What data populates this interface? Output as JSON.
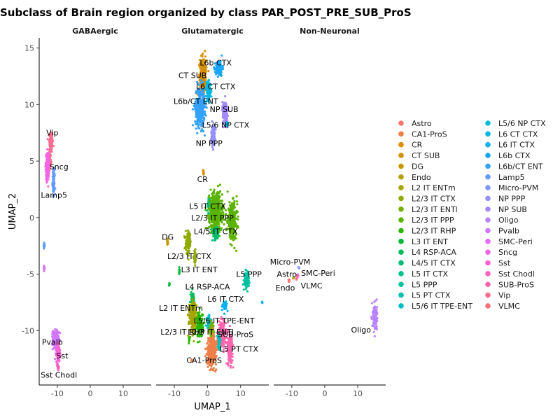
{
  "chart_data": {
    "type": "scatter",
    "title": "Subclass of Brain region organized by class PAR_POST_PRE_SUB_ProS",
    "xlabel": "UMAP_1",
    "ylabel": "UMAP_2",
    "xlim": [
      -15.5,
      18.5
    ],
    "ylim": [
      -14.8,
      15.9
    ],
    "xticks": [
      -10,
      0,
      10
    ],
    "yticks": [
      -10,
      -5,
      0,
      5,
      10,
      15
    ],
    "grid": false,
    "legend_placement": "right",
    "facets": [
      "GABAergic",
      "Glutamatergic",
      "Non-Neuronal"
    ],
    "legend": [
      {
        "name": "Astro",
        "color": "#F8766D"
      },
      {
        "name": "CA1-ProS",
        "color": "#EF7F49"
      },
      {
        "name": "CR",
        "color": "#E38900"
      },
      {
        "name": "CT SUB",
        "color": "#D69100"
      },
      {
        "name": "DG",
        "color": "#C49A00"
      },
      {
        "name": "Endo",
        "color": "#B3A000"
      },
      {
        "name": "L2 IT ENTm",
        "color": "#A3A500"
      },
      {
        "name": "L2/3 IT CTX",
        "color": "#8FAA00"
      },
      {
        "name": "L2/3 IT ENTl",
        "color": "#79AF00"
      },
      {
        "name": "L2/3 IT PPP",
        "color": "#5BB300"
      },
      {
        "name": "L2/3 IT RHP",
        "color": "#2AB700"
      },
      {
        "name": "L3 IT ENT",
        "color": "#00BA38"
      },
      {
        "name": "L4 RSP-ACA",
        "color": "#00BC59"
      },
      {
        "name": "L4/5 IT CTX",
        "color": "#00BE72"
      },
      {
        "name": "L5 IT CTX",
        "color": "#00C08B"
      },
      {
        "name": "L5 PPP",
        "color": "#00C1A1"
      },
      {
        "name": "L5 PT CTX",
        "color": "#00C0B5"
      },
      {
        "name": "L5/6 IT TPE-ENT",
        "color": "#00BFC4"
      },
      {
        "name": "L5/6 NP CTX",
        "color": "#00BDD4"
      },
      {
        "name": "L6 CT CTX",
        "color": "#00B8E4"
      },
      {
        "name": "L6 IT CTX",
        "color": "#00B0F6"
      },
      {
        "name": "L6b CTX",
        "color": "#19A6FF"
      },
      {
        "name": "L6b/CT ENT",
        "color": "#35A2FF"
      },
      {
        "name": "Lamp5",
        "color": "#619CFF"
      },
      {
        "name": "Micro-PVM",
        "color": "#7F96FF"
      },
      {
        "name": "NP PPP",
        "color": "#9590FF"
      },
      {
        "name": "NP SUB",
        "color": "#A58AFF"
      },
      {
        "name": "Oligo",
        "color": "#B983FF"
      },
      {
        "name": "Pvalb",
        "color": "#D177FF"
      },
      {
        "name": "SMC-Peri",
        "color": "#E76BF3"
      },
      {
        "name": "Sncg",
        "color": "#F365E6"
      },
      {
        "name": "Sst",
        "color": "#FC61D5"
      },
      {
        "name": "Sst Chodl",
        "color": "#FF62BC"
      },
      {
        "name": "SUB-ProS",
        "color": "#FF65AE"
      },
      {
        "name": "Vip",
        "color": "#FF6C91"
      },
      {
        "name": "VLMC",
        "color": "#FA727A"
      }
    ],
    "clusters": [
      {
        "facet": 0,
        "label": "Vip",
        "lx": -11.5,
        "ly": 7.5,
        "color": "#FF6C91",
        "blobs": [
          [
            -11.9,
            6.7,
            0.45,
            0.9,
            160
          ],
          [
            -12.6,
            5.0,
            0.6,
            0.8,
            120
          ]
        ]
      },
      {
        "facet": 0,
        "label": "Sncg",
        "lx": -9.5,
        "ly": 4.5,
        "color": "#F365E6",
        "blobs": [
          [
            -13.0,
            4.5,
            0.45,
            1.1,
            110
          ]
        ]
      },
      {
        "facet": 0,
        "label": "Lamp5",
        "lx": -11.0,
        "ly": 2.0,
        "color": "#619CFF",
        "blobs": [
          [
            -11.1,
            3.2,
            0.3,
            1.0,
            90
          ],
          [
            -14.0,
            -2.5,
            0.2,
            0.25,
            15
          ]
        ]
      },
      {
        "facet": 0,
        "label": "Pvalb",
        "lx": -11.5,
        "ly": -11.0,
        "color": "#D177FF",
        "blobs": [
          [
            -10.5,
            -10.8,
            0.8,
            0.8,
            200
          ],
          [
            -14.0,
            -4.5,
            0.2,
            0.3,
            10
          ]
        ]
      },
      {
        "facet": 0,
        "label": "Sst",
        "lx": -8.5,
        "ly": -12.2,
        "color": "#FC61D5",
        "blobs": [
          [
            -9.7,
            -12.0,
            0.5,
            0.7,
            130
          ]
        ]
      },
      {
        "facet": 0,
        "label": "Sst Chodl",
        "lx": -9.5,
        "ly": -13.9,
        "color": "#FF62BC",
        "blobs": [
          [
            -9.8,
            -13.2,
            0.3,
            0.2,
            25
          ]
        ]
      },
      {
        "facet": 1,
        "label": "L6b CTX",
        "lx": 2.5,
        "ly": 13.7,
        "color": "#19A6FF",
        "blobs": [
          [
            3.5,
            13.2,
            0.9,
            0.6,
            130
          ]
        ]
      },
      {
        "facet": 1,
        "label": "CT SUB",
        "lx": -4.5,
        "ly": 12.6,
        "color": "#D69100",
        "blobs": [
          [
            -1.3,
            12.6,
            0.9,
            1.5,
            300
          ]
        ]
      },
      {
        "facet": 1,
        "label": "L6 CT CTX",
        "lx": 2.5,
        "ly": 11.6,
        "color": "#00B8E4",
        "blobs": [
          [
            0.3,
            11.2,
            0.7,
            0.7,
            120
          ]
        ]
      },
      {
        "facet": 1,
        "label": "L6b/CT ENT",
        "lx": -3.5,
        "ly": 10.3,
        "color": "#35A2FF",
        "blobs": [
          [
            -2.3,
            9.8,
            1.3,
            1.6,
            340
          ]
        ]
      },
      {
        "facet": 1,
        "label": "NP SUB",
        "lx": 5.0,
        "ly": 9.6,
        "color": "#A58AFF",
        "blobs": [
          [
            5.3,
            9.3,
            0.7,
            0.9,
            150
          ]
        ]
      },
      {
        "facet": 1,
        "label": "L5/6 NP CTX",
        "lx": 5.5,
        "ly": 8.2,
        "color": "#00BDD4",
        "blobs": [
          [
            5.8,
            8.3,
            0.3,
            0.2,
            20
          ]
        ]
      },
      {
        "facet": 1,
        "label": "NP PPP",
        "lx": 0.5,
        "ly": 6.6,
        "color": "#9590FF",
        "blobs": [
          [
            1.7,
            7.3,
            0.5,
            0.8,
            120
          ]
        ]
      },
      {
        "facet": 1,
        "label": "CR",
        "lx": -1.5,
        "ly": 3.4,
        "color": "#E38900",
        "blobs": [
          [
            -1.2,
            4.0,
            0.15,
            0.2,
            15
          ]
        ]
      },
      {
        "facet": 1,
        "label": "L5 IT CTX",
        "lx": 0.0,
        "ly": 1.0,
        "color": "#00C08B",
        "blobs": [
          [
            0.5,
            1.2,
            0.6,
            0.6,
            60
          ]
        ]
      },
      {
        "facet": 1,
        "label": "L2/3 IT PPP",
        "lx": 1.5,
        "ly": 0.0,
        "color": "#5BB300",
        "blobs": [
          [
            2.5,
            0.5,
            1.8,
            1.5,
            500
          ],
          [
            7.5,
            -0.3,
            1.3,
            1.4,
            280
          ]
        ]
      },
      {
        "facet": 1,
        "label": "L4/5 IT CTX",
        "lx": 2.5,
        "ly": -1.2,
        "color": "#00BE72",
        "blobs": [
          [
            2.5,
            -1.5,
            0.9,
            0.5,
            80
          ]
        ]
      },
      {
        "facet": 1,
        "label": "DG",
        "lx": -12.0,
        "ly": -1.7,
        "color": "#C49A00",
        "blobs": [
          [
            -12.0,
            -2.2,
            0.2,
            0.2,
            15
          ]
        ]
      },
      {
        "facet": 1,
        "label": "L2/3 IT CTX",
        "lx": -5.5,
        "ly": -3.4,
        "color": "#8FAA00",
        "blobs": [
          [
            -5.8,
            -2.2,
            0.7,
            0.8,
            140
          ],
          [
            -3.8,
            -3.5,
            0.3,
            0.5,
            40
          ]
        ]
      },
      {
        "facet": 1,
        "label": "L3 IT ENT",
        "lx": -2.5,
        "ly": -4.6,
        "color": "#00BA38",
        "blobs": [
          [
            -8.5,
            -4.8,
            0.15,
            0.4,
            10
          ],
          [
            -11.5,
            -5.8,
            0.15,
            0.2,
            6
          ]
        ]
      },
      {
        "facet": 1,
        "label": "L5 PPP",
        "lx": 12.5,
        "ly": -5.0,
        "color": "#00C1A1",
        "blobs": [
          [
            11.8,
            -5.6,
            0.6,
            0.6,
            90
          ]
        ]
      },
      {
        "facet": 1,
        "label": "L4 RSP-ACA",
        "lx": 0.0,
        "ly": -6.1,
        "color": "#00BC59",
        "blobs": [
          [
            -4.5,
            -7.2,
            0.5,
            0.6,
            60
          ]
        ]
      },
      {
        "facet": 1,
        "label": "L6 IT CTX",
        "lx": 5.5,
        "ly": -7.2,
        "color": "#00B0F6",
        "blobs": [
          [
            5.2,
            -7.8,
            0.6,
            0.4,
            40
          ],
          [
            16.5,
            -7.5,
            0.1,
            0.1,
            3
          ]
        ]
      },
      {
        "facet": 1,
        "label": "L2 IT ENTm",
        "lx": -8.0,
        "ly": -8.0,
        "color": "#A3A500",
        "blobs": [
          [
            -4.5,
            -8.8,
            1.0,
            1.2,
            220
          ]
        ]
      },
      {
        "facet": 1,
        "label": "L2/3 IT RHP",
        "lx": -7.5,
        "ly": -10.1,
        "color": "#2AB700",
        "blobs": [
          [
            -2.3,
            -9.5,
            0.8,
            1.0,
            150
          ],
          [
            -5.5,
            -10.8,
            0.2,
            0.3,
            10
          ]
        ]
      },
      {
        "facet": 1,
        "label": "L5/6 IT TPE-ENT",
        "lx": 5.0,
        "ly": -9.1,
        "color": "#00BFC4",
        "blobs": [
          [
            0.5,
            -9.2,
            0.7,
            0.5,
            60
          ]
        ]
      },
      {
        "facet": 1,
        "label": "L2/3 IT ENTl",
        "lx": 1.0,
        "ly": -10.1,
        "color": "#79AF00",
        "blobs": [
          [
            1.2,
            -10.0,
            0.6,
            0.6,
            70
          ]
        ]
      },
      {
        "facet": 1,
        "label": "SUB-ProS",
        "lx": 8.5,
        "ly": -10.3,
        "color": "#FF65AE",
        "blobs": [
          [
            4.5,
            -10.3,
            1.0,
            1.0,
            200
          ],
          [
            6.8,
            -11.6,
            0.7,
            1.2,
            170
          ]
        ]
      },
      {
        "facet": 1,
        "label": "L5 PT CTX",
        "lx": 9.5,
        "ly": -11.6,
        "color": "#00C0B5",
        "blobs": [
          [
            3.5,
            -11.0,
            0.4,
            0.6,
            50
          ]
        ]
      },
      {
        "facet": 1,
        "label": "CA1-ProS",
        "lx": -1.0,
        "ly": -12.6,
        "color": "#EF7F49",
        "blobs": [
          [
            1.3,
            -11.8,
            1.2,
            1.1,
            350
          ],
          [
            -4.8,
            -12.6,
            0.1,
            0.15,
            4
          ]
        ]
      },
      {
        "facet": 2,
        "label": "Micro-PVM",
        "lx": -10.5,
        "ly": -3.9,
        "color": "#7F96FF",
        "blobs": [
          [
            -7.8,
            -4.5,
            0.15,
            0.15,
            6
          ]
        ]
      },
      {
        "facet": 2,
        "label": "Astro",
        "lx": -11.5,
        "ly": -5.0,
        "color": "#F8766D",
        "blobs": [
          [
            -10.8,
            -5.6,
            0.2,
            0.15,
            8
          ]
        ]
      },
      {
        "facet": 2,
        "label": "SMC-Peri",
        "lx": -2.0,
        "ly": -4.9,
        "color": "#E76BF3",
        "blobs": [
          [
            -8.2,
            -5.1,
            0.15,
            0.15,
            6
          ]
        ]
      },
      {
        "facet": 2,
        "label": "Endo",
        "lx": -12.0,
        "ly": -6.2,
        "color": "#B3A000",
        "blobs": [
          [
            -9.5,
            -5.3,
            0.15,
            0.15,
            5
          ]
        ]
      },
      {
        "facet": 2,
        "label": "VLMC",
        "lx": -4.0,
        "ly": -6.0,
        "color": "#FA727A",
        "blobs": [
          [
            -8.5,
            -5.4,
            0.15,
            0.15,
            5
          ]
        ]
      },
      {
        "facet": 2,
        "label": "Oligo",
        "lx": 11.0,
        "ly": -9.9,
        "color": "#B983FF",
        "blobs": [
          [
            15.2,
            -8.8,
            0.6,
            1.1,
            120
          ]
        ]
      }
    ]
  }
}
